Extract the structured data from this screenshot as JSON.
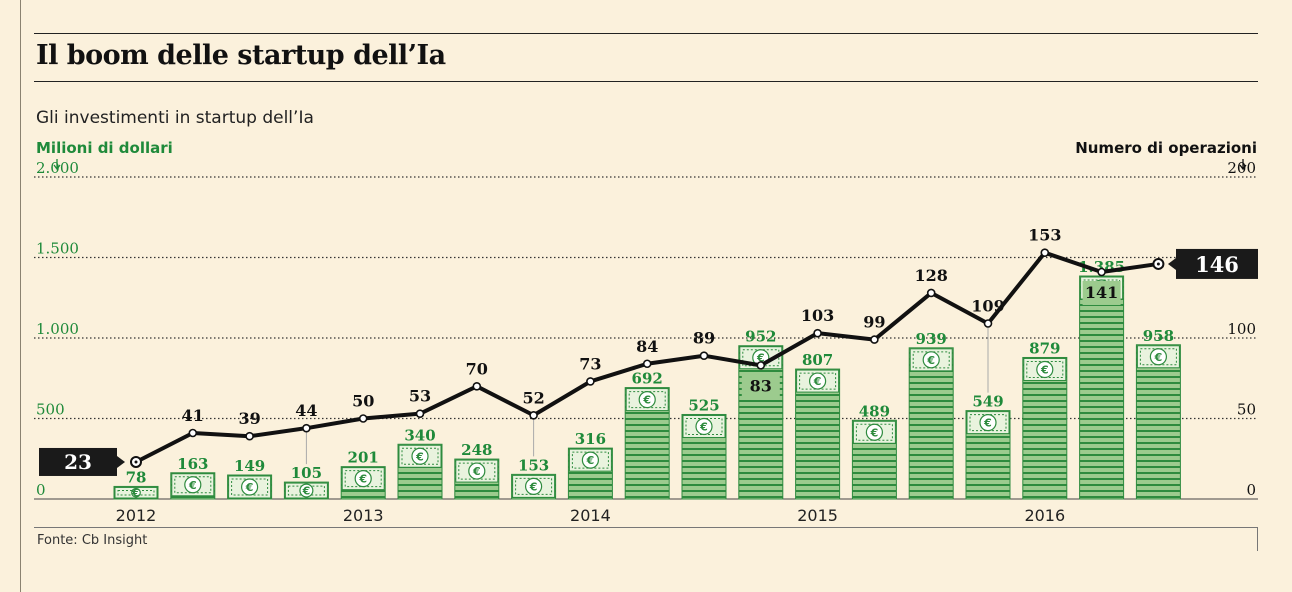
{
  "title": "Il boom delle startup dell’Ia",
  "subtitle": "Gli investimenti in startup dell’Ia",
  "source": "Fonte: Cb Insight",
  "colors": {
    "green_text": "#1f8a3a",
    "bar_fill": "#9ccb8e",
    "bar_stripe": "#2e8b3e",
    "line": "#111111",
    "background": "#fbf1dc"
  },
  "chart_data": {
    "type": "bar+line",
    "left_axis": {
      "label": "Milioni di dollari",
      "range": [
        0,
        2000
      ],
      "ticks": [
        0,
        500,
        1000,
        1500,
        2000
      ],
      "tick_labels": [
        "0",
        "500",
        "1.000",
        "1.500",
        "2.000"
      ]
    },
    "right_axis": {
      "label": "Numero di operazioni",
      "range": [
        0,
        200
      ],
      "ticks": [
        0,
        50,
        100,
        200
      ],
      "tick_labels": [
        "0",
        "50",
        "100",
        "200"
      ]
    },
    "x_labels": [
      "2012",
      "2013",
      "2014",
      "2015",
      "2016"
    ],
    "investments": {
      "name": "Milioni di dollari",
      "values": [
        78,
        163,
        149,
        105,
        201,
        340,
        248,
        153,
        316,
        692,
        525,
        952,
        807,
        489,
        939,
        549,
        879,
        1385,
        958
      ],
      "labels": [
        "78",
        "163",
        "149",
        "105",
        "201",
        "340",
        "248",
        "153",
        "316",
        "692",
        "525",
        "952",
        "807",
        "489",
        "939",
        "549",
        "879",
        "1.385",
        "958"
      ]
    },
    "deals": {
      "name": "Numero di operazioni",
      "values": [
        23,
        41,
        39,
        44,
        50,
        53,
        70,
        52,
        73,
        84,
        89,
        83,
        103,
        99,
        128,
        109,
        153,
        141,
        146
      ],
      "labels": [
        "23",
        "41",
        "39",
        "44",
        "50",
        "53",
        "70",
        "52",
        "73",
        "84",
        "89",
        "83",
        "103",
        "99",
        "128",
        "109",
        "153",
        "141",
        "146"
      ]
    },
    "currency_symbol": "€"
  }
}
